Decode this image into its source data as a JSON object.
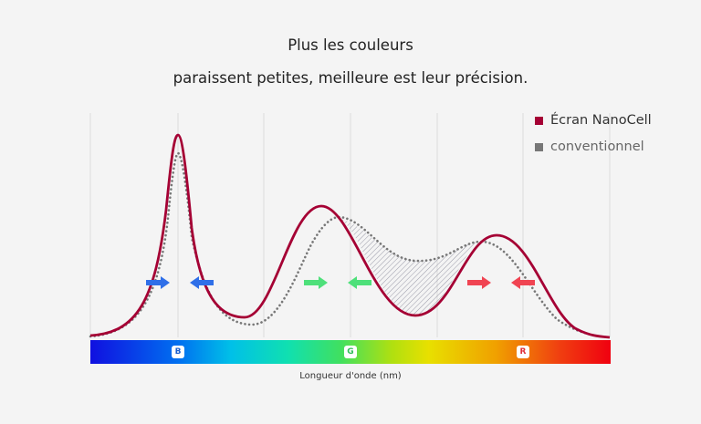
{
  "title_line1": "Plus les couleurs",
  "title_line2": "paraissent petites, meilleure est leur précision.",
  "legend": [
    {
      "label": "Écran NanoCell",
      "color": "#a50034",
      "style": "solid"
    },
    {
      "label": "conventionnel",
      "color": "#777777",
      "style": "dotted"
    }
  ],
  "xlabel": "Longueur d'onde (nm)",
  "spectrum_labels": [
    {
      "label": "B",
      "color": "#1a5fd0"
    },
    {
      "label": "G",
      "color": "#2ebd56"
    },
    {
      "label": "R",
      "color": "#e0303a"
    }
  ],
  "arrow_colors": {
    "blue": "#2f6fe8",
    "green": "#4ee07a",
    "red": "#f04452"
  }
}
